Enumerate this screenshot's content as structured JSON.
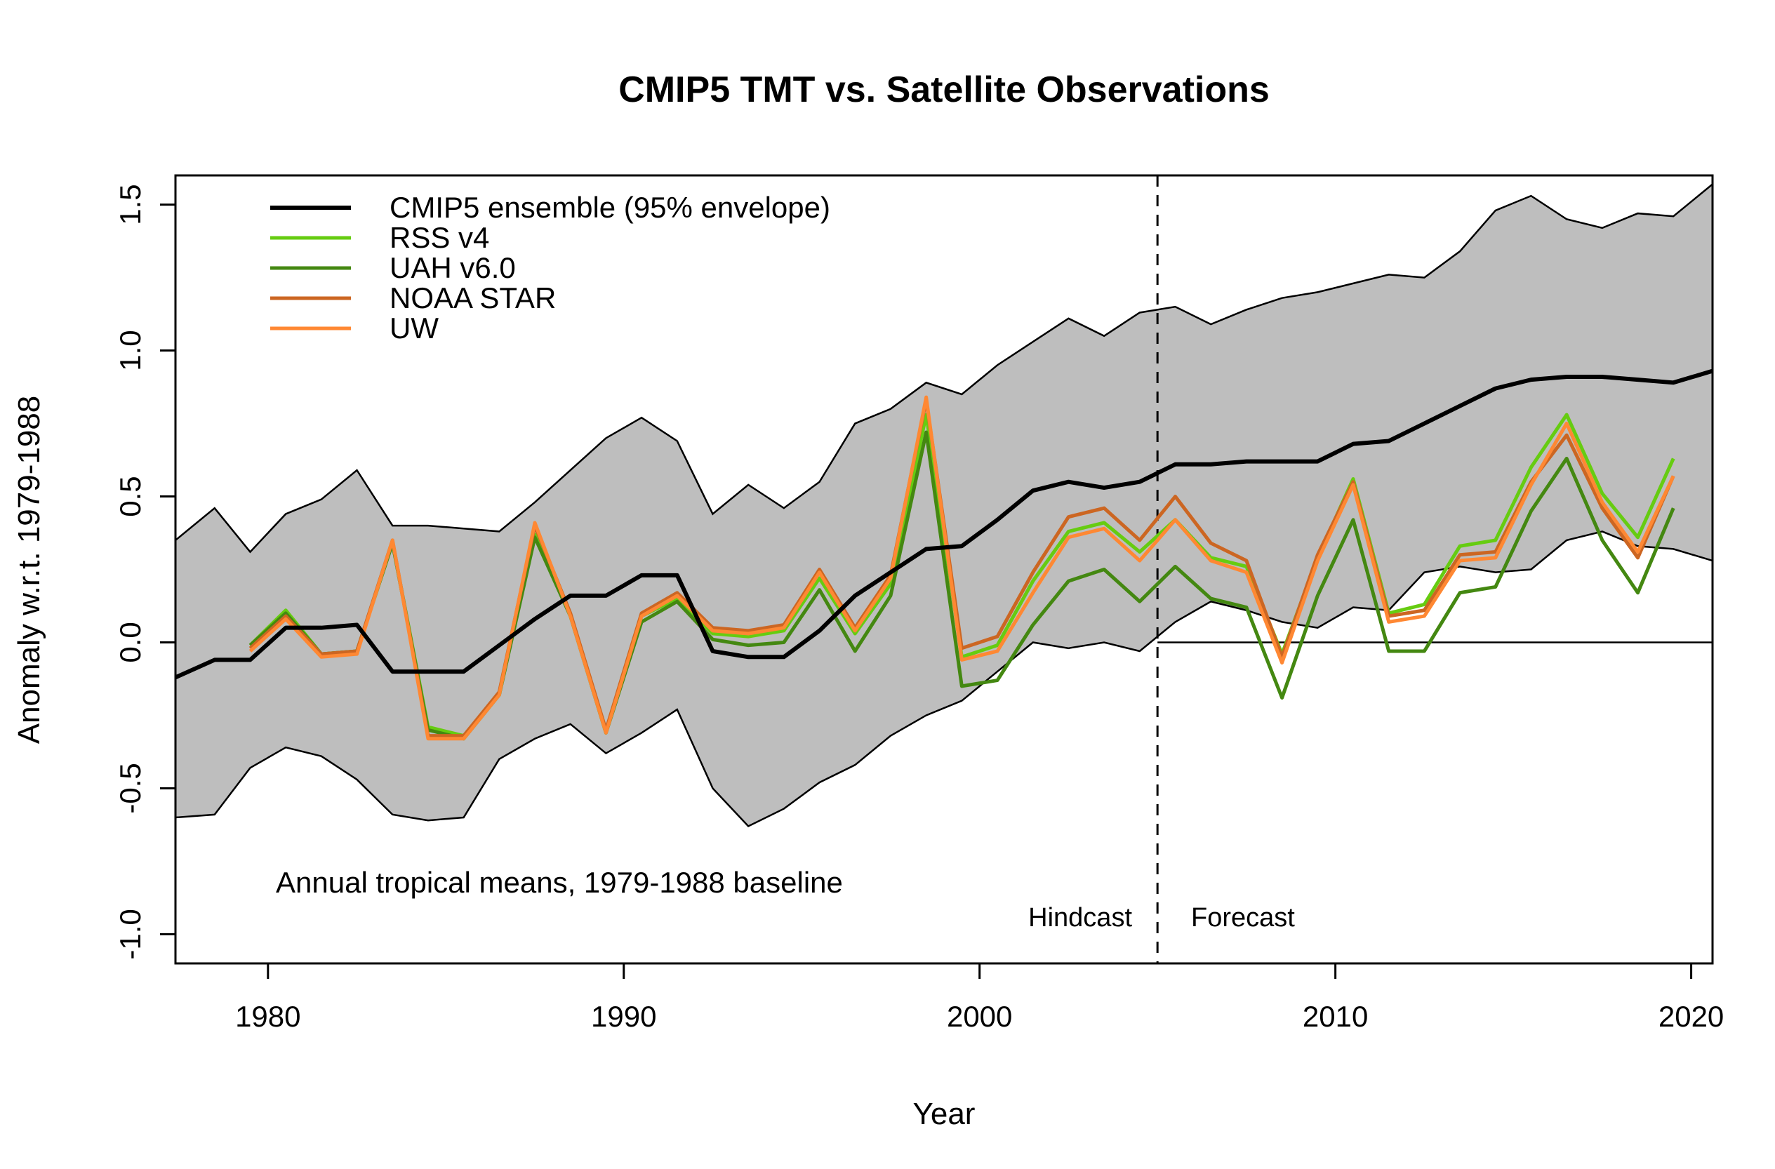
{
  "chart_data": {
    "type": "line",
    "title": "CMIP5 TMT vs. Satellite Observations",
    "xlabel": "Year",
    "ylabel": "Anomaly w.r.t. 1979-1988",
    "xlim": [
      1977.4,
      2020.6
    ],
    "ylim": [
      -1.1,
      1.6
    ],
    "xticks": [
      1980,
      1990,
      2000,
      2010,
      2020
    ],
    "yticks": [
      -1.0,
      -0.5,
      0.0,
      0.5,
      1.0,
      1.5
    ],
    "xtick_labels": [
      "1980",
      "1990",
      "2000",
      "2010",
      "2020"
    ],
    "ytick_labels": [
      "-1.0",
      "-0.5",
      "0.0",
      "0.5",
      "1.0",
      "1.5"
    ],
    "legend_position": "top-left",
    "grid": false,
    "annotation": "Annual tropical means, 1979-1988 baseline",
    "divider": {
      "x": 2005.0,
      "left_label": "Hindcast",
      "right_label": "Forecast"
    },
    "reference_line_y": 0.0,
    "envelope": {
      "name": "CMIP5 ensemble (95% envelope)",
      "x": [
        1977.4,
        1978.5,
        1979.5,
        1980.5,
        1981.5,
        1982.5,
        1983.5,
        1984.5,
        1985.5,
        1986.5,
        1987.5,
        1988.5,
        1989.5,
        1990.5,
        1991.5,
        1992.5,
        1993.5,
        1994.5,
        1995.5,
        1996.5,
        1997.5,
        1998.5,
        1999.5,
        2000.5,
        2001.5,
        2002.5,
        2003.5,
        2004.5,
        2005.5,
        2006.5,
        2007.5,
        2008.5,
        2009.5,
        2010.5,
        2011.5,
        2012.5,
        2013.5,
        2014.5,
        2015.5,
        2016.5,
        2017.5,
        2018.5,
        2019.5,
        2020.6
      ],
      "upper": [
        0.35,
        0.46,
        0.31,
        0.44,
        0.49,
        0.59,
        0.4,
        0.4,
        0.39,
        0.38,
        0.48,
        0.59,
        0.7,
        0.77,
        0.69,
        0.44,
        0.54,
        0.46,
        0.55,
        0.75,
        0.8,
        0.89,
        0.85,
        0.95,
        1.03,
        1.11,
        1.05,
        1.13,
        1.15,
        1.09,
        1.14,
        1.18,
        1.2,
        1.23,
        1.26,
        1.25,
        1.34,
        1.48,
        1.53,
        1.45,
        1.42,
        1.47,
        1.46,
        1.57
      ],
      "lower": [
        -0.6,
        -0.59,
        -0.43,
        -0.36,
        -0.39,
        -0.47,
        -0.59,
        -0.61,
        -0.6,
        -0.4,
        -0.33,
        -0.28,
        -0.38,
        -0.31,
        -0.23,
        -0.5,
        -0.63,
        -0.57,
        -0.48,
        -0.42,
        -0.32,
        -0.25,
        -0.2,
        -0.1,
        0.0,
        -0.02,
        0.0,
        -0.03,
        0.07,
        0.14,
        0.11,
        0.07,
        0.05,
        0.12,
        0.11,
        0.24,
        0.26,
        0.24,
        0.25,
        0.35,
        0.38,
        0.33,
        0.32,
        0.28
      ]
    },
    "series": [
      {
        "name": "CMIP5 ensemble (95% envelope)",
        "color": "#000000",
        "x": [
          1977.4,
          1978.5,
          1979.5,
          1980.5,
          1981.5,
          1982.5,
          1983.5,
          1984.5,
          1985.5,
          1986.5,
          1987.5,
          1988.5,
          1989.5,
          1990.5,
          1991.5,
          1992.5,
          1993.5,
          1994.5,
          1995.5,
          1996.5,
          1997.5,
          1998.5,
          1999.5,
          2000.5,
          2001.5,
          2002.5,
          2003.5,
          2004.5,
          2005.5,
          2006.5,
          2007.5,
          2008.5,
          2009.5,
          2010.5,
          2011.5,
          2012.5,
          2013.5,
          2014.5,
          2015.5,
          2016.5,
          2017.5,
          2018.5,
          2019.5,
          2020.6
        ],
        "y": [
          -0.12,
          -0.06,
          -0.06,
          0.05,
          0.05,
          0.06,
          -0.1,
          -0.1,
          -0.1,
          -0.01,
          0.08,
          0.16,
          0.16,
          0.23,
          0.23,
          -0.03,
          -0.05,
          -0.05,
          0.04,
          0.16,
          0.24,
          0.32,
          0.33,
          0.42,
          0.52,
          0.55,
          0.53,
          0.55,
          0.61,
          0.61,
          0.62,
          0.62,
          0.62,
          0.68,
          0.69,
          0.75,
          0.81,
          0.87,
          0.9,
          0.91,
          0.91,
          0.9,
          0.89,
          0.93
        ]
      },
      {
        "name": "RSS v4",
        "color": "#66cc11",
        "x": [
          1979.5,
          1980.5,
          1981.5,
          1982.5,
          1983.5,
          1984.5,
          1985.5,
          1986.5,
          1987.5,
          1988.5,
          1989.5,
          1990.5,
          1991.5,
          1992.5,
          1993.5,
          1994.5,
          1995.5,
          1996.5,
          1997.5,
          1998.5,
          1999.5,
          2000.5,
          2001.5,
          2002.5,
          2003.5,
          2004.5,
          2005.5,
          2006.5,
          2007.5,
          2008.5,
          2009.5,
          2010.5,
          2011.5,
          2012.5,
          2013.5,
          2014.5,
          2015.5,
          2016.5,
          2017.5,
          2018.5,
          2019.5
        ],
        "y": [
          -0.01,
          0.11,
          -0.04,
          -0.03,
          0.34,
          -0.29,
          -0.32,
          -0.18,
          0.37,
          0.09,
          -0.31,
          0.09,
          0.15,
          0.03,
          0.02,
          0.04,
          0.22,
          0.03,
          0.2,
          0.78,
          -0.05,
          -0.01,
          0.21,
          0.38,
          0.41,
          0.31,
          0.42,
          0.29,
          0.26,
          -0.04,
          0.29,
          0.56,
          0.1,
          0.13,
          0.33,
          0.35,
          0.6,
          0.78,
          0.51,
          0.36,
          0.63
        ]
      },
      {
        "name": "UAH v6.0",
        "color": "#448811",
        "x": [
          1979.5,
          1980.5,
          1981.5,
          1982.5,
          1983.5,
          1984.5,
          1985.5,
          1986.5,
          1987.5,
          1988.5,
          1989.5,
          1990.5,
          1991.5,
          1992.5,
          1993.5,
          1994.5,
          1995.5,
          1996.5,
          1997.5,
          1998.5,
          1999.5,
          2000.5,
          2001.5,
          2002.5,
          2003.5,
          2004.5,
          2005.5,
          2006.5,
          2007.5,
          2008.5,
          2009.5,
          2010.5,
          2011.5,
          2012.5,
          2013.5,
          2014.5,
          2015.5,
          2016.5,
          2017.5,
          2018.5,
          2019.5
        ],
        "y": [
          -0.01,
          0.1,
          -0.04,
          -0.03,
          0.34,
          -0.3,
          -0.33,
          -0.18,
          0.36,
          0.09,
          -0.31,
          0.07,
          0.14,
          0.01,
          -0.01,
          0.0,
          0.18,
          -0.03,
          0.16,
          0.72,
          -0.15,
          -0.13,
          0.06,
          0.21,
          0.25,
          0.14,
          0.26,
          0.15,
          0.12,
          -0.19,
          0.16,
          0.42,
          -0.03,
          -0.03,
          0.17,
          0.19,
          0.45,
          0.63,
          0.35,
          0.17,
          0.46
        ]
      },
      {
        "name": "NOAA STAR",
        "color": "#cc6622",
        "x": [
          1979.5,
          1980.5,
          1981.5,
          1982.5,
          1983.5,
          1984.5,
          1985.5,
          1986.5,
          1987.5,
          1988.5,
          1989.5,
          1990.5,
          1991.5,
          1992.5,
          1993.5,
          1994.5,
          1995.5,
          1996.5,
          1997.5,
          1998.5,
          1999.5,
          2000.5,
          2001.5,
          2002.5,
          2003.5,
          2004.5,
          2005.5,
          2006.5,
          2007.5,
          2008.5,
          2009.5,
          2010.5,
          2011.5,
          2012.5,
          2013.5,
          2014.5,
          2015.5,
          2016.5,
          2017.5,
          2018.5,
          2019.5
        ],
        "y": [
          -0.02,
          0.09,
          -0.04,
          -0.03,
          0.35,
          -0.32,
          -0.32,
          -0.17,
          0.4,
          0.1,
          -0.3,
          0.1,
          0.17,
          0.05,
          0.04,
          0.06,
          0.25,
          0.05,
          0.23,
          0.83,
          -0.02,
          0.02,
          0.24,
          0.43,
          0.46,
          0.35,
          0.5,
          0.34,
          0.28,
          -0.05,
          0.3,
          0.55,
          0.09,
          0.11,
          0.3,
          0.31,
          0.55,
          0.71,
          0.46,
          0.29,
          0.57
        ]
      },
      {
        "name": "UW",
        "color": "#ff8833",
        "x": [
          1979.5,
          1980.5,
          1981.5,
          1982.5,
          1983.5,
          1984.5,
          1985.5,
          1986.5,
          1987.5,
          1988.5,
          1989.5,
          1990.5,
          1991.5,
          1992.5,
          1993.5,
          1994.5,
          1995.5,
          1996.5,
          1997.5,
          1998.5,
          1999.5,
          2000.5,
          2001.5,
          2002.5,
          2003.5,
          2004.5,
          2005.5,
          2006.5,
          2007.5,
          2008.5,
          2009.5,
          2010.5,
          2011.5,
          2012.5,
          2013.5,
          2014.5,
          2015.5,
          2016.5,
          2017.5,
          2018.5,
          2019.5
        ],
        "y": [
          -0.03,
          0.08,
          -0.05,
          -0.04,
          0.35,
          -0.33,
          -0.33,
          -0.18,
          0.41,
          0.09,
          -0.31,
          0.09,
          0.16,
          0.04,
          0.03,
          0.05,
          0.24,
          0.04,
          0.22,
          0.84,
          -0.06,
          -0.03,
          0.17,
          0.36,
          0.39,
          0.28,
          0.42,
          0.28,
          0.24,
          -0.07,
          0.28,
          0.54,
          0.07,
          0.09,
          0.28,
          0.29,
          0.54,
          0.75,
          0.48,
          0.31,
          0.57
        ]
      }
    ]
  }
}
